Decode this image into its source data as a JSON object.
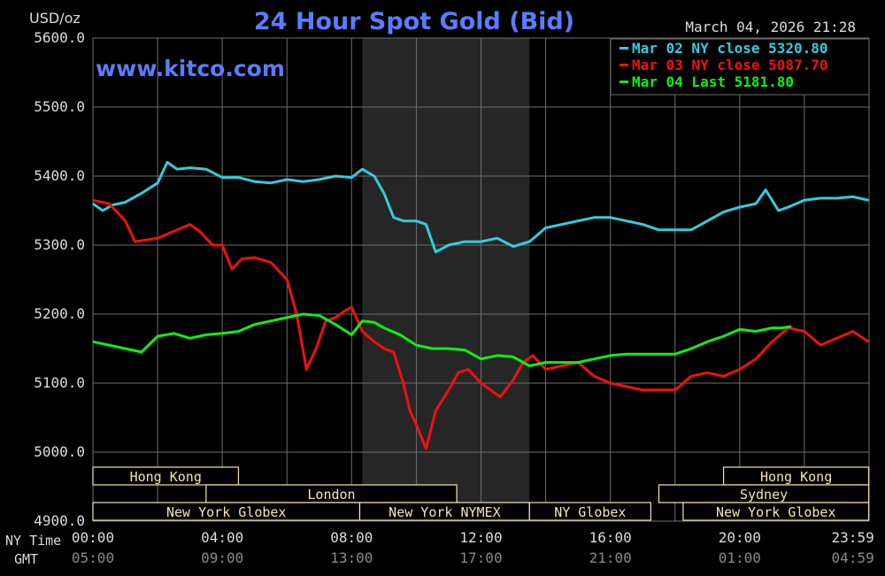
{
  "header": {
    "unit": "USD/oz",
    "title": "24 Hour Spot Gold (Bid)",
    "timestamp": "March 04, 2026 21:28",
    "watermark": "www.kitco.com"
  },
  "axis_labels": {
    "ny_time": "NY Time",
    "gmt": "GMT"
  },
  "colors": {
    "background": "#000000",
    "grid": "#6e6e6e",
    "title": "#5b7cff",
    "session_band": "#262626",
    "session_box": "#f3e6b4",
    "series_mar02": "#33ccdd",
    "series_mar03": "#ee1111",
    "series_mar04": "#11ee11"
  },
  "legend": [
    {
      "text": "Mar 02 NY close 5320.80",
      "color": "#33ccdd"
    },
    {
      "text": "Mar 03 NY close 5087.70",
      "color": "#ee1111"
    },
    {
      "text": "Mar 04 Last 5181.80",
      "color": "#11ee11"
    }
  ],
  "sessions": [
    {
      "label": "Hong Kong",
      "start": 0,
      "end": 4.5
    },
    {
      "label": "London",
      "start": 3.5,
      "end": 11.25
    },
    {
      "label": "New York Globex",
      "start": 0,
      "end": 8.25
    },
    {
      "label": "New York NYMEX",
      "start": 8.25,
      "end": 13.5
    },
    {
      "label": "NY Globex",
      "start": 13.5,
      "end": 17.25
    },
    {
      "label": "Hong Kong",
      "start": 19.5,
      "end": 23.99
    },
    {
      "label": "Sydney",
      "start": 17.5,
      "end": 23.99
    },
    {
      "label": "New York Globex",
      "start": 18.25,
      "end": 23.99
    }
  ],
  "chart_data": {
    "type": "line",
    "title": "24 Hour Spot Gold (Bid)",
    "ylabel": "USD/oz",
    "ylim": [
      4900,
      5600
    ],
    "xlim": [
      0,
      24
    ],
    "yticks": [
      "5600.0",
      "5500.0",
      "5400.0",
      "5300.0",
      "5200.0",
      "5100.0",
      "5000.0",
      "4900.0"
    ],
    "xticks_ny": [
      "00:00",
      "04:00",
      "08:00",
      "12:00",
      "16:00",
      "20:00",
      "23:59"
    ],
    "xticks_gmt": [
      "05:00",
      "09:00",
      "13:00",
      "17:00",
      "21:00",
      "01:00",
      "04:59"
    ],
    "active_band": [
      8.33,
      13.5
    ],
    "grid": true,
    "legend_position": "top-right",
    "series": [
      {
        "name": "Mar 02 NY close 5320.80",
        "x": [
          0,
          0.3,
          0.6,
          1.0,
          1.5,
          2.0,
          2.3,
          2.6,
          3.0,
          3.5,
          4.0,
          4.5,
          5.0,
          5.5,
          6.0,
          6.5,
          7.0,
          7.5,
          8.0,
          8.33,
          8.7,
          9.0,
          9.3,
          9.6,
          10.0,
          10.3,
          10.6,
          11.0,
          11.5,
          12.0,
          12.5,
          13.0,
          13.5,
          14.0,
          14.5,
          15.0,
          15.5,
          16.0,
          16.5,
          17.0,
          17.5,
          18.0,
          18.5,
          19.0,
          19.5,
          20.0,
          20.5,
          20.8,
          21.2,
          21.5,
          22.0,
          22.5,
          23.0,
          23.5,
          23.99
        ],
        "y": [
          5360,
          5350,
          5358,
          5362,
          5375,
          5390,
          5420,
          5410,
          5412,
          5410,
          5398,
          5398,
          5392,
          5390,
          5395,
          5392,
          5395,
          5400,
          5398,
          5410,
          5400,
          5375,
          5340,
          5335,
          5335,
          5330,
          5290,
          5300,
          5305,
          5305,
          5310,
          5298,
          5305,
          5325,
          5330,
          5335,
          5340,
          5340,
          5335,
          5330,
          5322,
          5322,
          5322,
          5335,
          5348,
          5355,
          5360,
          5380,
          5350,
          5355,
          5365,
          5368,
          5368,
          5370,
          5365
        ]
      },
      {
        "name": "Mar 03 NY close 5087.70",
        "x": [
          0,
          0.5,
          1.0,
          1.3,
          1.7,
          2.0,
          2.5,
          3.0,
          3.3,
          3.7,
          4.0,
          4.3,
          4.6,
          5.0,
          5.5,
          6.0,
          6.3,
          6.6,
          6.9,
          7.2,
          7.5,
          7.8,
          8.0,
          8.33,
          8.7,
          9.0,
          9.3,
          9.6,
          9.8,
          10.0,
          10.3,
          10.6,
          11.0,
          11.3,
          11.6,
          12.0,
          12.3,
          12.6,
          13.0,
          13.3,
          13.6,
          14.0,
          14.5,
          15.0,
          15.5,
          16.0,
          16.5,
          17.0,
          17.5,
          18.0,
          18.5,
          19.0,
          19.5,
          20.0,
          20.5,
          21.0,
          21.5,
          22.0,
          22.5,
          23.0,
          23.5,
          23.99
        ],
        "y": [
          5365,
          5360,
          5335,
          5305,
          5308,
          5310,
          5320,
          5330,
          5320,
          5300,
          5300,
          5265,
          5280,
          5282,
          5275,
          5250,
          5200,
          5120,
          5150,
          5190,
          5195,
          5205,
          5210,
          5175,
          5160,
          5150,
          5145,
          5100,
          5060,
          5040,
          5005,
          5060,
          5090,
          5115,
          5120,
          5100,
          5090,
          5080,
          5105,
          5130,
          5140,
          5120,
          5125,
          5130,
          5110,
          5100,
          5095,
          5090,
          5090,
          5090,
          5110,
          5115,
          5110,
          5120,
          5135,
          5160,
          5180,
          5175,
          5155,
          5165,
          5175,
          5160
        ]
      },
      {
        "name": "Mar 04 Last 5181.80",
        "x": [
          0,
          0.5,
          1.0,
          1.5,
          2.0,
          2.5,
          3.0,
          3.5,
          4.0,
          4.5,
          5.0,
          5.5,
          6.0,
          6.5,
          7.0,
          7.5,
          8.0,
          8.33,
          8.7,
          9.0,
          9.5,
          10.0,
          10.5,
          11.0,
          11.5,
          12.0,
          12.5,
          13.0,
          13.5,
          14.0,
          14.5,
          15.0,
          15.5,
          16.0,
          16.5,
          17.0,
          17.5,
          18.0,
          18.5,
          19.0,
          19.5,
          20.0,
          20.5,
          21.0,
          21.3,
          21.6
        ],
        "y": [
          5160,
          5155,
          5150,
          5145,
          5168,
          5172,
          5165,
          5170,
          5172,
          5175,
          5185,
          5190,
          5195,
          5200,
          5198,
          5185,
          5170,
          5190,
          5188,
          5180,
          5170,
          5155,
          5150,
          5150,
          5148,
          5135,
          5140,
          5138,
          5125,
          5130,
          5130,
          5130,
          5135,
          5140,
          5142,
          5142,
          5142,
          5142,
          5150,
          5160,
          5168,
          5178,
          5175,
          5180,
          5180,
          5182
        ]
      }
    ]
  }
}
